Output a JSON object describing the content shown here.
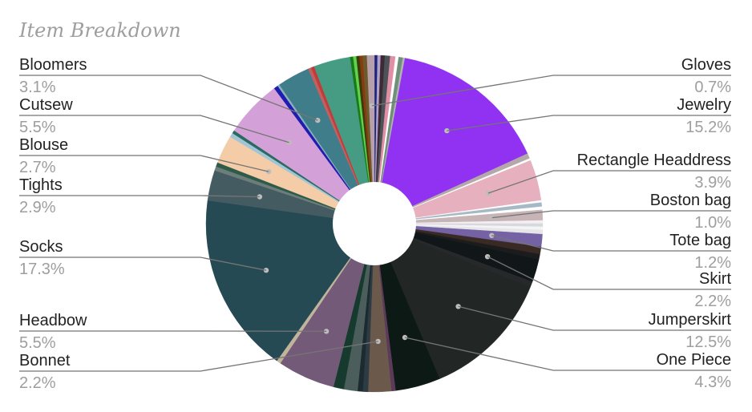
{
  "chart_data": {
    "type": "pie",
    "title": "Item Breakdown",
    "slices": [
      {
        "label": "",
        "value": 0.3,
        "color": "#1a237e"
      },
      {
        "label": "",
        "value": 0.3,
        "color": "#b0a2c6"
      },
      {
        "label": "",
        "value": 0.4,
        "color": "#3e2a35"
      },
      {
        "label": "",
        "value": 0.5,
        "color": "#4c5258"
      },
      {
        "label": "",
        "value": 0.5,
        "color": "#e08fa6"
      },
      {
        "label": "",
        "value": 0.3,
        "color": "#ffffff"
      },
      {
        "label": "",
        "value": 0.4,
        "color": "#6f8f7a"
      },
      {
        "label": "",
        "value": 0.2,
        "color": "#b4b4b4"
      },
      {
        "label": "Jewelry",
        "value": 15.2,
        "color": "#9132f2"
      },
      {
        "label": "",
        "value": 0.5,
        "color": "#b4a8a8"
      },
      {
        "label": "",
        "value": 0.2,
        "color": "#ffffff"
      },
      {
        "label": "Rectangle Headdress",
        "value": 3.9,
        "color": "#e6b0bf"
      },
      {
        "label": "",
        "value": 0.2,
        "color": "#ffffff"
      },
      {
        "label": "",
        "value": 0.4,
        "color": "#a8b9c6"
      },
      {
        "label": "",
        "value": 0.3,
        "color": "#ffffff"
      },
      {
        "label": "Boston bag",
        "value": 1.0,
        "color": "#c7b4b7"
      },
      {
        "label": "",
        "value": 0.3,
        "color": "#f2eef2"
      },
      {
        "label": "",
        "value": 0.3,
        "color": "#d8d8dd"
      },
      {
        "label": "",
        "value": 0.3,
        "color": "#f4f4f6"
      },
      {
        "label": "",
        "value": 0.4,
        "color": "#e6e6e9"
      },
      {
        "label": "Tote bag",
        "value": 1.2,
        "color": "#7462a5"
      },
      {
        "label": "",
        "value": 0.7,
        "color": "#3a2a26"
      },
      {
        "label": "",
        "value": 0.5,
        "color": "#1d1c1c"
      },
      {
        "label": "Skirt",
        "value": 2.2,
        "color": "#111719"
      },
      {
        "label": "",
        "value": 0.5,
        "color": "#27282b"
      },
      {
        "label": "Jumperskirt",
        "value": 12.5,
        "color": "#222624"
      },
      {
        "label": "One Piece",
        "value": 4.3,
        "color": "#0d1914"
      },
      {
        "label": "",
        "value": 0.4,
        "color": "#5c3a5a"
      },
      {
        "label": "Bonnet",
        "value": 2.2,
        "color": "#6b5a4c"
      },
      {
        "label": "",
        "value": 0.5,
        "color": "#2f3b43"
      },
      {
        "label": "",
        "value": 0.5,
        "color": "#1c2b31"
      },
      {
        "label": "",
        "value": 1.3,
        "color": "#4c5e5c"
      },
      {
        "label": "",
        "value": 1.0,
        "color": "#173a2e"
      },
      {
        "label": "Headbow",
        "value": 5.5,
        "color": "#735a78"
      },
      {
        "label": "",
        "value": 0.4,
        "color": "#c0b59a"
      },
      {
        "label": "Socks",
        "value": 17.3,
        "color": "#254a54"
      },
      {
        "label": "Tights",
        "value": 2.9,
        "color": "#455b62"
      },
      {
        "label": "",
        "value": 0.4,
        "color": "#6d7e7a"
      },
      {
        "label": "",
        "value": 0.4,
        "color": "#2e5a4a"
      },
      {
        "label": "Blouse",
        "value": 2.7,
        "color": "#f4cca7"
      },
      {
        "label": "",
        "value": 0.4,
        "color": "#9fc5d6"
      },
      {
        "label": "",
        "value": 0.3,
        "color": "#2b6a60"
      },
      {
        "label": "Cutsew",
        "value": 5.5,
        "color": "#d4a0d8"
      },
      {
        "label": "",
        "value": 0.4,
        "color": "#1d1db0"
      },
      {
        "label": "",
        "value": 0.2,
        "color": "#8cb0bc"
      },
      {
        "label": "Bloomers",
        "value": 3.1,
        "color": "#3f7d8a"
      },
      {
        "label": "",
        "value": 0.3,
        "color": "#c26060"
      },
      {
        "label": "",
        "value": 0.3,
        "color": "#c23a3a"
      },
      {
        "label": "",
        "value": 3.5,
        "color": "#459c83"
      },
      {
        "label": "",
        "value": 0.3,
        "color": "#1a7a1a"
      },
      {
        "label": "",
        "value": 0.3,
        "color": "#5fd34c"
      },
      {
        "label": "",
        "value": 0.3,
        "color": "#3a3a0a"
      },
      {
        "label": "",
        "value": 0.3,
        "color": "#8a3a10"
      },
      {
        "label": "",
        "value": 0.4,
        "color": "#6c5a2a"
      },
      {
        "label": "Gloves",
        "value": 0.7,
        "color": "#b8a0aa"
      }
    ],
    "labels_left": [
      {
        "name": "Bloomers",
        "pct": "3.1%"
      },
      {
        "name": "Cutsew",
        "pct": "5.5%"
      },
      {
        "name": "Blouse",
        "pct": "2.7%"
      },
      {
        "name": "Tights",
        "pct": "2.9%"
      },
      {
        "name": "Socks",
        "pct": "17.3%"
      },
      {
        "name": "Headbow",
        "pct": "5.5%"
      },
      {
        "name": "Bonnet",
        "pct": "2.2%"
      }
    ],
    "labels_right": [
      {
        "name": "Gloves",
        "pct": "0.7%"
      },
      {
        "name": "Jewelry",
        "pct": "15.2%"
      },
      {
        "name": "Rectangle Headdress",
        "pct": "3.9%"
      },
      {
        "name": "Boston bag",
        "pct": "1.0%"
      },
      {
        "name": "Tote bag",
        "pct": "1.2%"
      },
      {
        "name": "Skirt",
        "pct": "2.2%"
      },
      {
        "name": "Jumperskirt",
        "pct": "12.5%"
      },
      {
        "name": "One Piece",
        "pct": "4.3%"
      }
    ],
    "legend": "labeled-callouts"
  }
}
